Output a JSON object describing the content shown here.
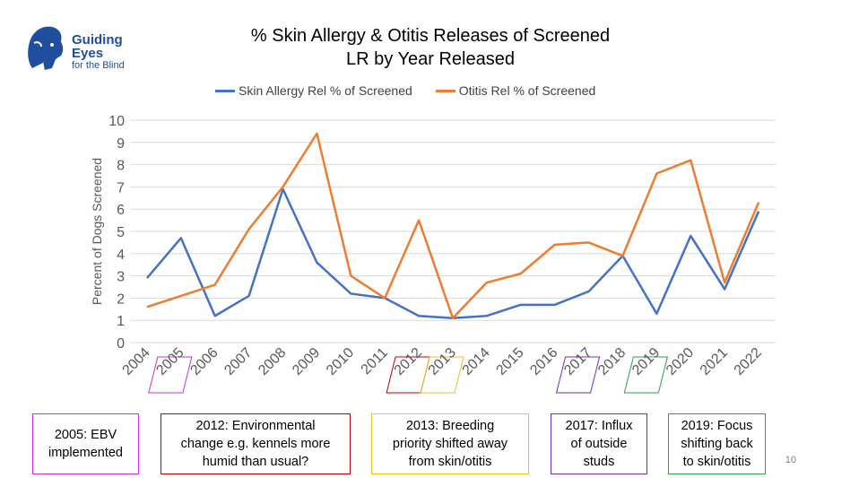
{
  "logo": {
    "line1": "Guiding",
    "line2": "Eyes",
    "line3": "for the Blind"
  },
  "page_number": "10",
  "colors": {
    "skin": "#4472c4",
    "otitis": "#ed7d31",
    "grid": "#d9d9d9",
    "axis_text": "#595959"
  },
  "chart_data": {
    "type": "line",
    "title_line1": "% Skin Allergy & Otitis Releases of Screened",
    "title_line2": "LR by Year Released",
    "ylabel": "Percent of Dogs Screened",
    "xlabel": "",
    "ylim": [
      0,
      10
    ],
    "yticks": [
      "0",
      "1",
      "2",
      "3",
      "4",
      "5",
      "6",
      "7",
      "8",
      "9",
      "10"
    ],
    "categories": [
      "2004",
      "2005",
      "2006",
      "2007",
      "2008",
      "2009",
      "2010",
      "2011",
      "2012",
      "2013",
      "2014",
      "2015",
      "2016",
      "2017",
      "2018",
      "2019",
      "2020",
      "2021",
      "2022"
    ],
    "legend_position": "top",
    "grid": true,
    "series": [
      {
        "name": "Skin Allergy Rel % of Screened",
        "color": "#4472c4",
        "values": [
          2.9,
          4.7,
          1.2,
          2.1,
          6.9,
          3.6,
          2.2,
          2.0,
          1.2,
          1.1,
          1.2,
          1.7,
          1.7,
          2.3,
          3.9,
          1.3,
          4.8,
          2.4,
          5.9
        ]
      },
      {
        "name": "Otitis Rel % of Screened",
        "color": "#ed7d31",
        "values": [
          1.6,
          2.1,
          2.6,
          5.1,
          7.0,
          9.4,
          3.0,
          2.0,
          5.5,
          1.1,
          2.7,
          3.1,
          4.4,
          4.5,
          3.9,
          7.6,
          8.2,
          2.7,
          6.3
        ]
      }
    ],
    "highlighted_years": [
      {
        "year": "2005",
        "color": "#cc33cc"
      },
      {
        "year": "2012",
        "color": "#c00000"
      },
      {
        "year": "2013",
        "color": "#f0c020"
      },
      {
        "year": "2017",
        "color": "#7030a0"
      },
      {
        "year": "2019",
        "color": "#2e9e4e"
      }
    ],
    "annotations": [
      {
        "lines": [
          "2005: EBV",
          "implemented"
        ],
        "color": "#cc33cc"
      },
      {
        "lines": [
          "2012: Environmental",
          "change e.g. kennels more",
          "humid than usual?"
        ],
        "color": "#c00000"
      },
      {
        "lines": [
          "2013: Breeding",
          "priority shifted away",
          "from skin/otitis"
        ],
        "color": "#f0c020"
      },
      {
        "lines": [
          "2017: Influx",
          "of outside",
          "studs"
        ],
        "color": "#7030a0"
      },
      {
        "lines": [
          "2019: Focus",
          "shifting back",
          "to skin/otitis"
        ],
        "color": "#2e9e4e"
      }
    ]
  }
}
